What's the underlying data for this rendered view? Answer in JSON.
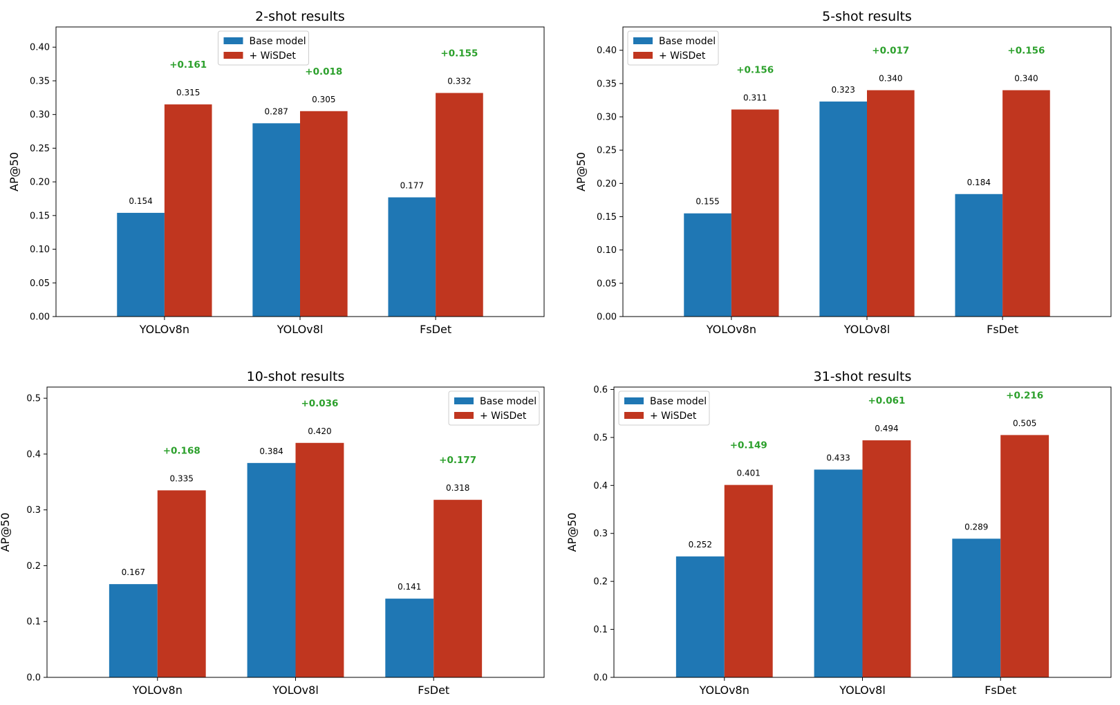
{
  "colors": {
    "base": "#1f77b4",
    "wisdet": "#c0361f",
    "delta": "#2ca02c"
  },
  "chart_data": [
    {
      "type": "bar",
      "title": "2-shot results",
      "ylabel": "AP@50",
      "categories": [
        "YOLOv8n",
        "YOLOv8l",
        "FsDet"
      ],
      "series": [
        {
          "name": "Base model",
          "values": [
            0.154,
            0.287,
            0.177
          ]
        },
        {
          "name": "+ WiSDet",
          "values": [
            0.315,
            0.305,
            0.332
          ]
        }
      ],
      "value_labels": {
        "base": [
          "0.154",
          "0.287",
          "0.177"
        ],
        "wisdet": [
          "0.315",
          "0.305",
          "0.332"
        ]
      },
      "deltas": [
        "+0.161",
        "+0.018",
        "+0.155"
      ],
      "ylim": [
        0,
        0.43
      ],
      "yticks": [
        0.0,
        0.05,
        0.1,
        0.15,
        0.2,
        0.25,
        0.3,
        0.35,
        0.4
      ],
      "ytick_labels": [
        "0.00",
        "0.05",
        "0.10",
        "0.15",
        "0.20",
        "0.25",
        "0.30",
        "0.35",
        "0.40"
      ],
      "legend": "upper-center"
    },
    {
      "type": "bar",
      "title": "5-shot results",
      "ylabel": "AP@50",
      "categories": [
        "YOLOv8n",
        "YOLOv8l",
        "FsDet"
      ],
      "series": [
        {
          "name": "Base model",
          "values": [
            0.155,
            0.323,
            0.184
          ]
        },
        {
          "name": "+ WiSDet",
          "values": [
            0.311,
            0.34,
            0.34
          ]
        }
      ],
      "value_labels": {
        "base": [
          "0.155",
          "0.323",
          "0.184"
        ],
        "wisdet": [
          "0.311",
          "0.340",
          "0.340"
        ]
      },
      "deltas": [
        "+0.156",
        "+0.017",
        "+0.156"
      ],
      "ylim": [
        0,
        0.435
      ],
      "yticks": [
        0.0,
        0.05,
        0.1,
        0.15,
        0.2,
        0.25,
        0.3,
        0.35,
        0.4
      ],
      "ytick_labels": [
        "0.00",
        "0.05",
        "0.10",
        "0.15",
        "0.20",
        "0.25",
        "0.30",
        "0.35",
        "0.40"
      ],
      "legend": "upper-left"
    },
    {
      "type": "bar",
      "title": "10-shot results",
      "ylabel": "AP@50",
      "categories": [
        "YOLOv8n",
        "YOLOv8l",
        "FsDet"
      ],
      "series": [
        {
          "name": "Base model",
          "values": [
            0.167,
            0.384,
            0.141
          ]
        },
        {
          "name": "+ WiSDet",
          "values": [
            0.335,
            0.42,
            0.318
          ]
        }
      ],
      "value_labels": {
        "base": [
          "0.167",
          "0.384",
          "0.141"
        ],
        "wisdet": [
          "0.335",
          "0.420",
          "0.318"
        ]
      },
      "deltas": [
        "+0.168",
        "+0.036",
        "+0.177"
      ],
      "ylim": [
        0,
        0.52
      ],
      "yticks": [
        0.0,
        0.1,
        0.2,
        0.3,
        0.4,
        0.5
      ],
      "ytick_labels": [
        "0.0",
        "0.1",
        "0.2",
        "0.3",
        "0.4",
        "0.5"
      ],
      "legend": "upper-right"
    },
    {
      "type": "bar",
      "title": "31-shot results",
      "ylabel": "AP@50",
      "categories": [
        "YOLOv8n",
        "YOLOv8l",
        "FsDet"
      ],
      "series": [
        {
          "name": "Base model",
          "values": [
            0.252,
            0.433,
            0.289
          ]
        },
        {
          "name": "+ WiSDet",
          "values": [
            0.401,
            0.494,
            0.505
          ]
        }
      ],
      "value_labels": {
        "base": [
          "0.252",
          "0.433",
          "0.289"
        ],
        "wisdet": [
          "0.401",
          "0.494",
          "0.505"
        ]
      },
      "deltas": [
        "+0.149",
        "+0.061",
        "+0.216"
      ],
      "ylim": [
        0,
        0.605
      ],
      "yticks": [
        0.0,
        0.1,
        0.2,
        0.3,
        0.4,
        0.5,
        0.6
      ],
      "ytick_labels": [
        "0.0",
        "0.1",
        "0.2",
        "0.3",
        "0.4",
        "0.5",
        "0.6"
      ],
      "legend": "upper-left"
    }
  ]
}
